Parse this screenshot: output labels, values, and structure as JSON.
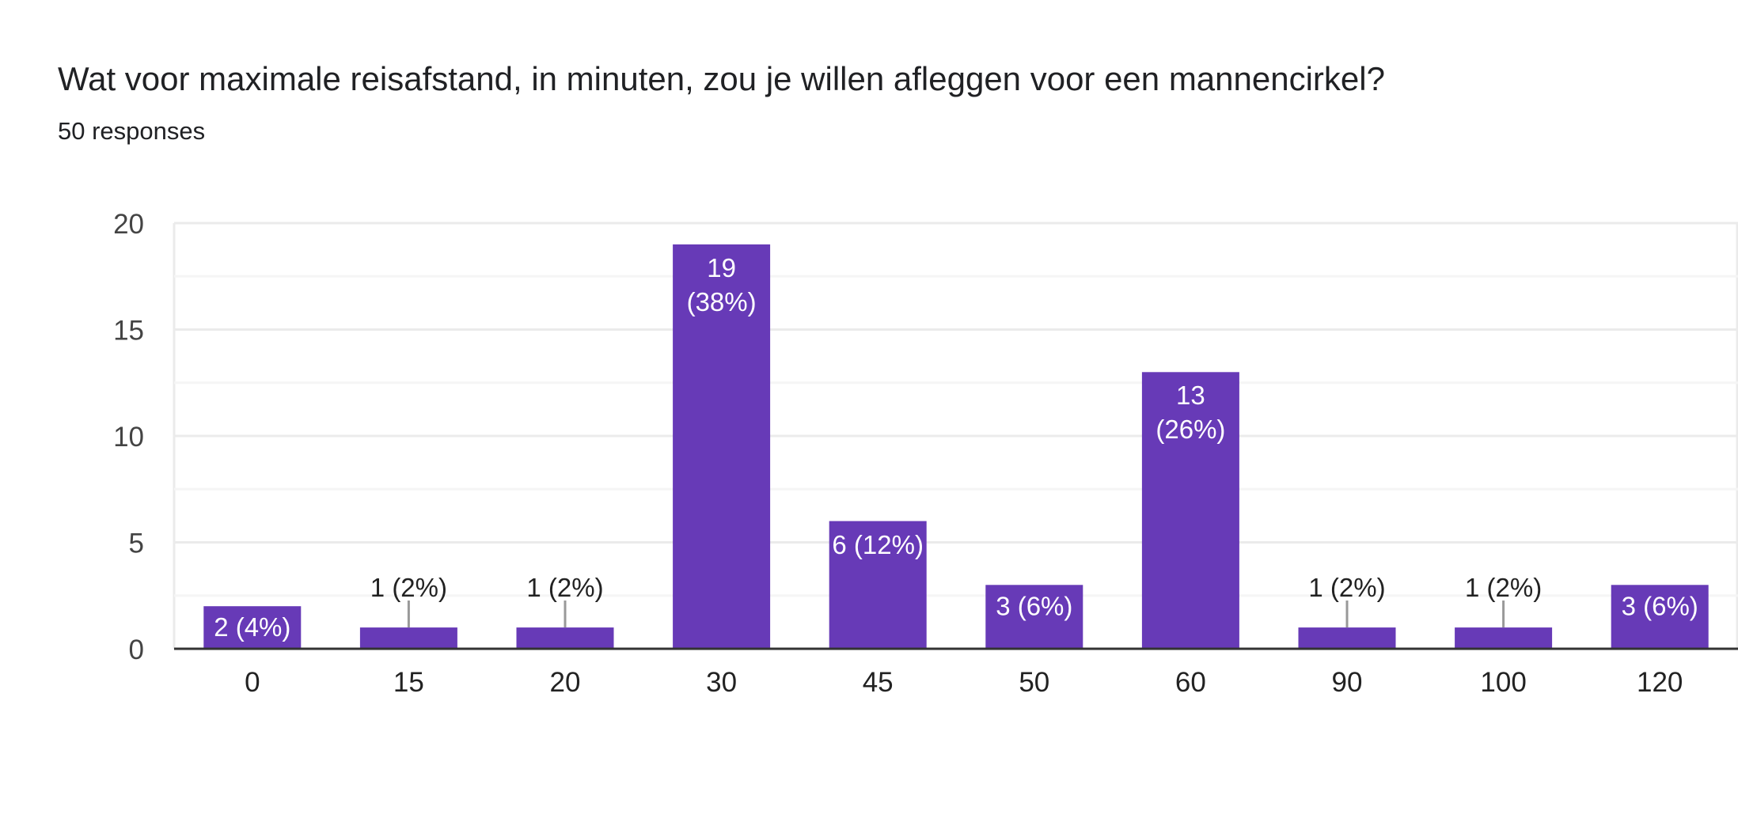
{
  "header": {
    "title": "Wat voor maximale reisafstand, in minuten, zou je willen afleggen voor een mannencirkel?",
    "responses": "50 responses"
  },
  "colors": {
    "bar": "#673ab7",
    "axis": "#333333",
    "grid_major": "#ebebeb",
    "grid_minor": "#f5f5f5"
  },
  "chart_data": {
    "type": "bar",
    "title": "",
    "xlabel": "",
    "ylabel": "",
    "categories": [
      "0",
      "15",
      "20",
      "30",
      "45",
      "50",
      "60",
      "90",
      "100",
      "120"
    ],
    "values": [
      2,
      1,
      1,
      19,
      6,
      3,
      13,
      1,
      1,
      3
    ],
    "data_labels": [
      "2 (4%)",
      "1 (2%)",
      "1 (2%)",
      "19 (38%)",
      "6 (12%)",
      "3 (6%)",
      "13 (26%)",
      "1 (2%)",
      "1 (2%)",
      "3 (6%)"
    ],
    "ylim": [
      0,
      20
    ],
    "yticks": [
      "0",
      "5",
      "10",
      "15",
      "20"
    ],
    "grid": true,
    "legend": "none"
  }
}
